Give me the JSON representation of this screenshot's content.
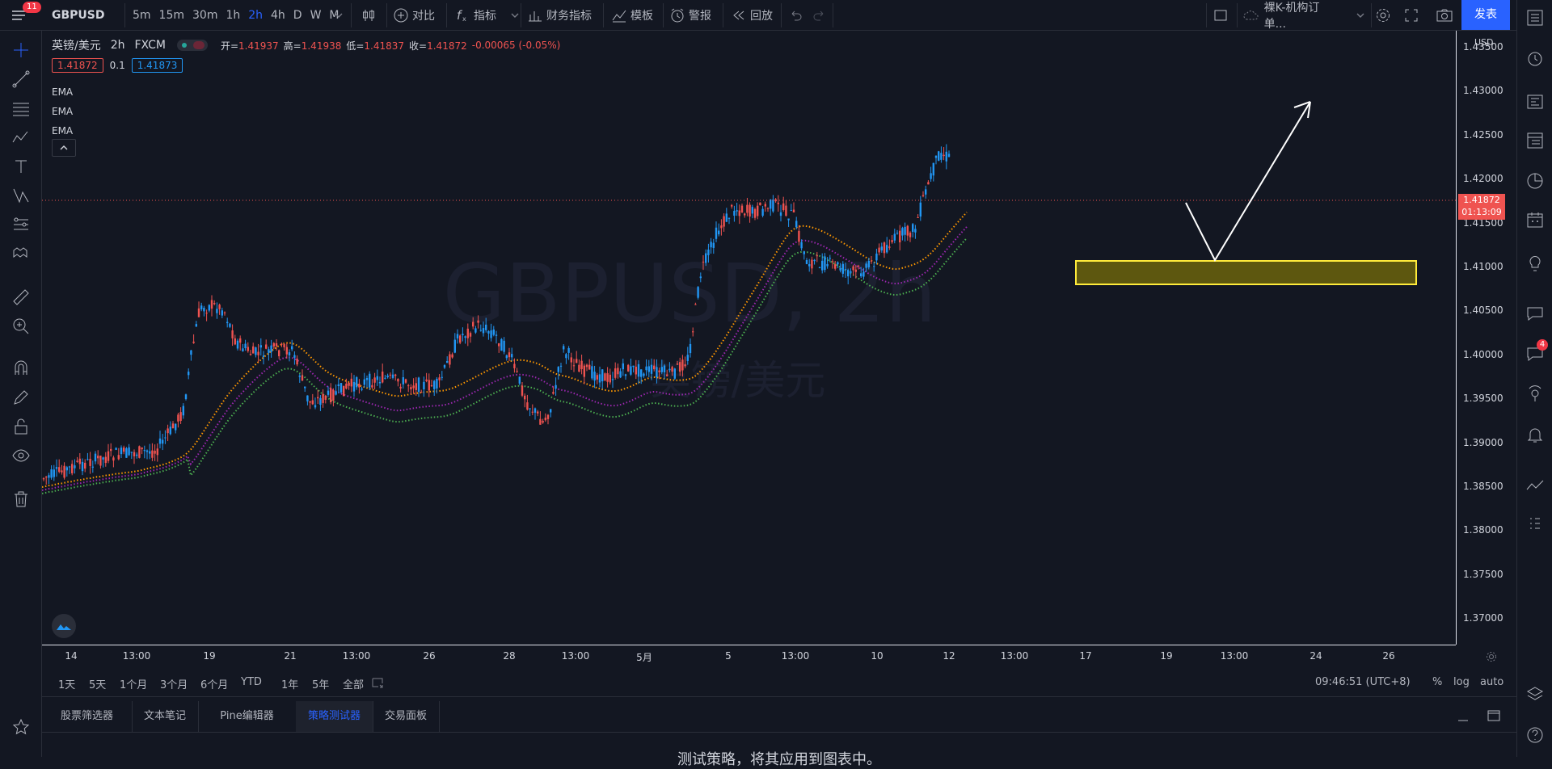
{
  "toolbar": {
    "menu_badge": "11",
    "symbol": "GBPUSD",
    "intervals": [
      "5m",
      "15m",
      "30m",
      "1h",
      "2h",
      "4h",
      "D",
      "W",
      "M"
    ],
    "active_interval": "2h",
    "compare_label": "对比",
    "indicators_label": "指标",
    "financials_label": "财务指标",
    "templates_label": "模板",
    "alert_label": "警报",
    "replay_label": "回放",
    "layout_name": "裸K-机构订单...",
    "publish_label": "发表"
  },
  "legend": {
    "name": "英镑/美元",
    "interval": "2h",
    "exchange": "FXCM",
    "open_label": "开=",
    "open": "1.41937",
    "high_label": "高=",
    "high": "1.41938",
    "low_label": "低=",
    "low": "1.41837",
    "close_label": "收=",
    "close": "1.41872",
    "change": "-0.00065 (-0.05%)",
    "bid": "1.41872",
    "spread": "0.1",
    "ask": "1.41873",
    "indicators": [
      "EMA",
      "EMA",
      "EMA"
    ]
  },
  "watermark": {
    "symbol": "GBPUSD, 2h",
    "name": "英镑/美元"
  },
  "price_axis": {
    "currency": "USD",
    "labels": [
      "1.43500",
      "1.43000",
      "1.42500",
      "1.42000",
      "1.41500",
      "1.41000",
      "1.40500",
      "1.40000",
      "1.39500",
      "1.39000",
      "1.38500",
      "1.38000",
      "1.37500",
      "1.37000"
    ],
    "current_price": "1.41872",
    "countdown": "01:13:09"
  },
  "time_axis": {
    "labels": [
      "14",
      "13:00",
      "19",
      "21",
      "13:00",
      "26",
      "28",
      "13:00",
      "5月",
      "5",
      "13:00",
      "10",
      "12",
      "13:00",
      "17",
      "19",
      "13:00",
      "24",
      "26"
    ]
  },
  "range_bar": {
    "ranges": [
      "1天",
      "5天",
      "1个月",
      "3个月",
      "6个月",
      "YTD",
      "1年",
      "5年",
      "全部"
    ],
    "clock": "09:46:51 (UTC+8)",
    "percent": "%",
    "log": "log",
    "auto": "auto"
  },
  "bottom_tabs": {
    "tabs": [
      "股票筛选器",
      "文本笔记",
      "Pine编辑器",
      "策略测试器",
      "交易面板"
    ],
    "active": "策略测试器",
    "message": "测试策略，将其应用到图表中。"
  },
  "right_sidebar": {
    "chat_badge": "4"
  },
  "colors": {
    "background": "#131722",
    "up": "#2196f3",
    "down": "#ef5350",
    "ema_fast": "#ff9800",
    "ema_mid": "#9c27b0",
    "ema_slow": "#4caf50",
    "zone": "#ffeb3b",
    "accent": "#2962ff"
  }
}
